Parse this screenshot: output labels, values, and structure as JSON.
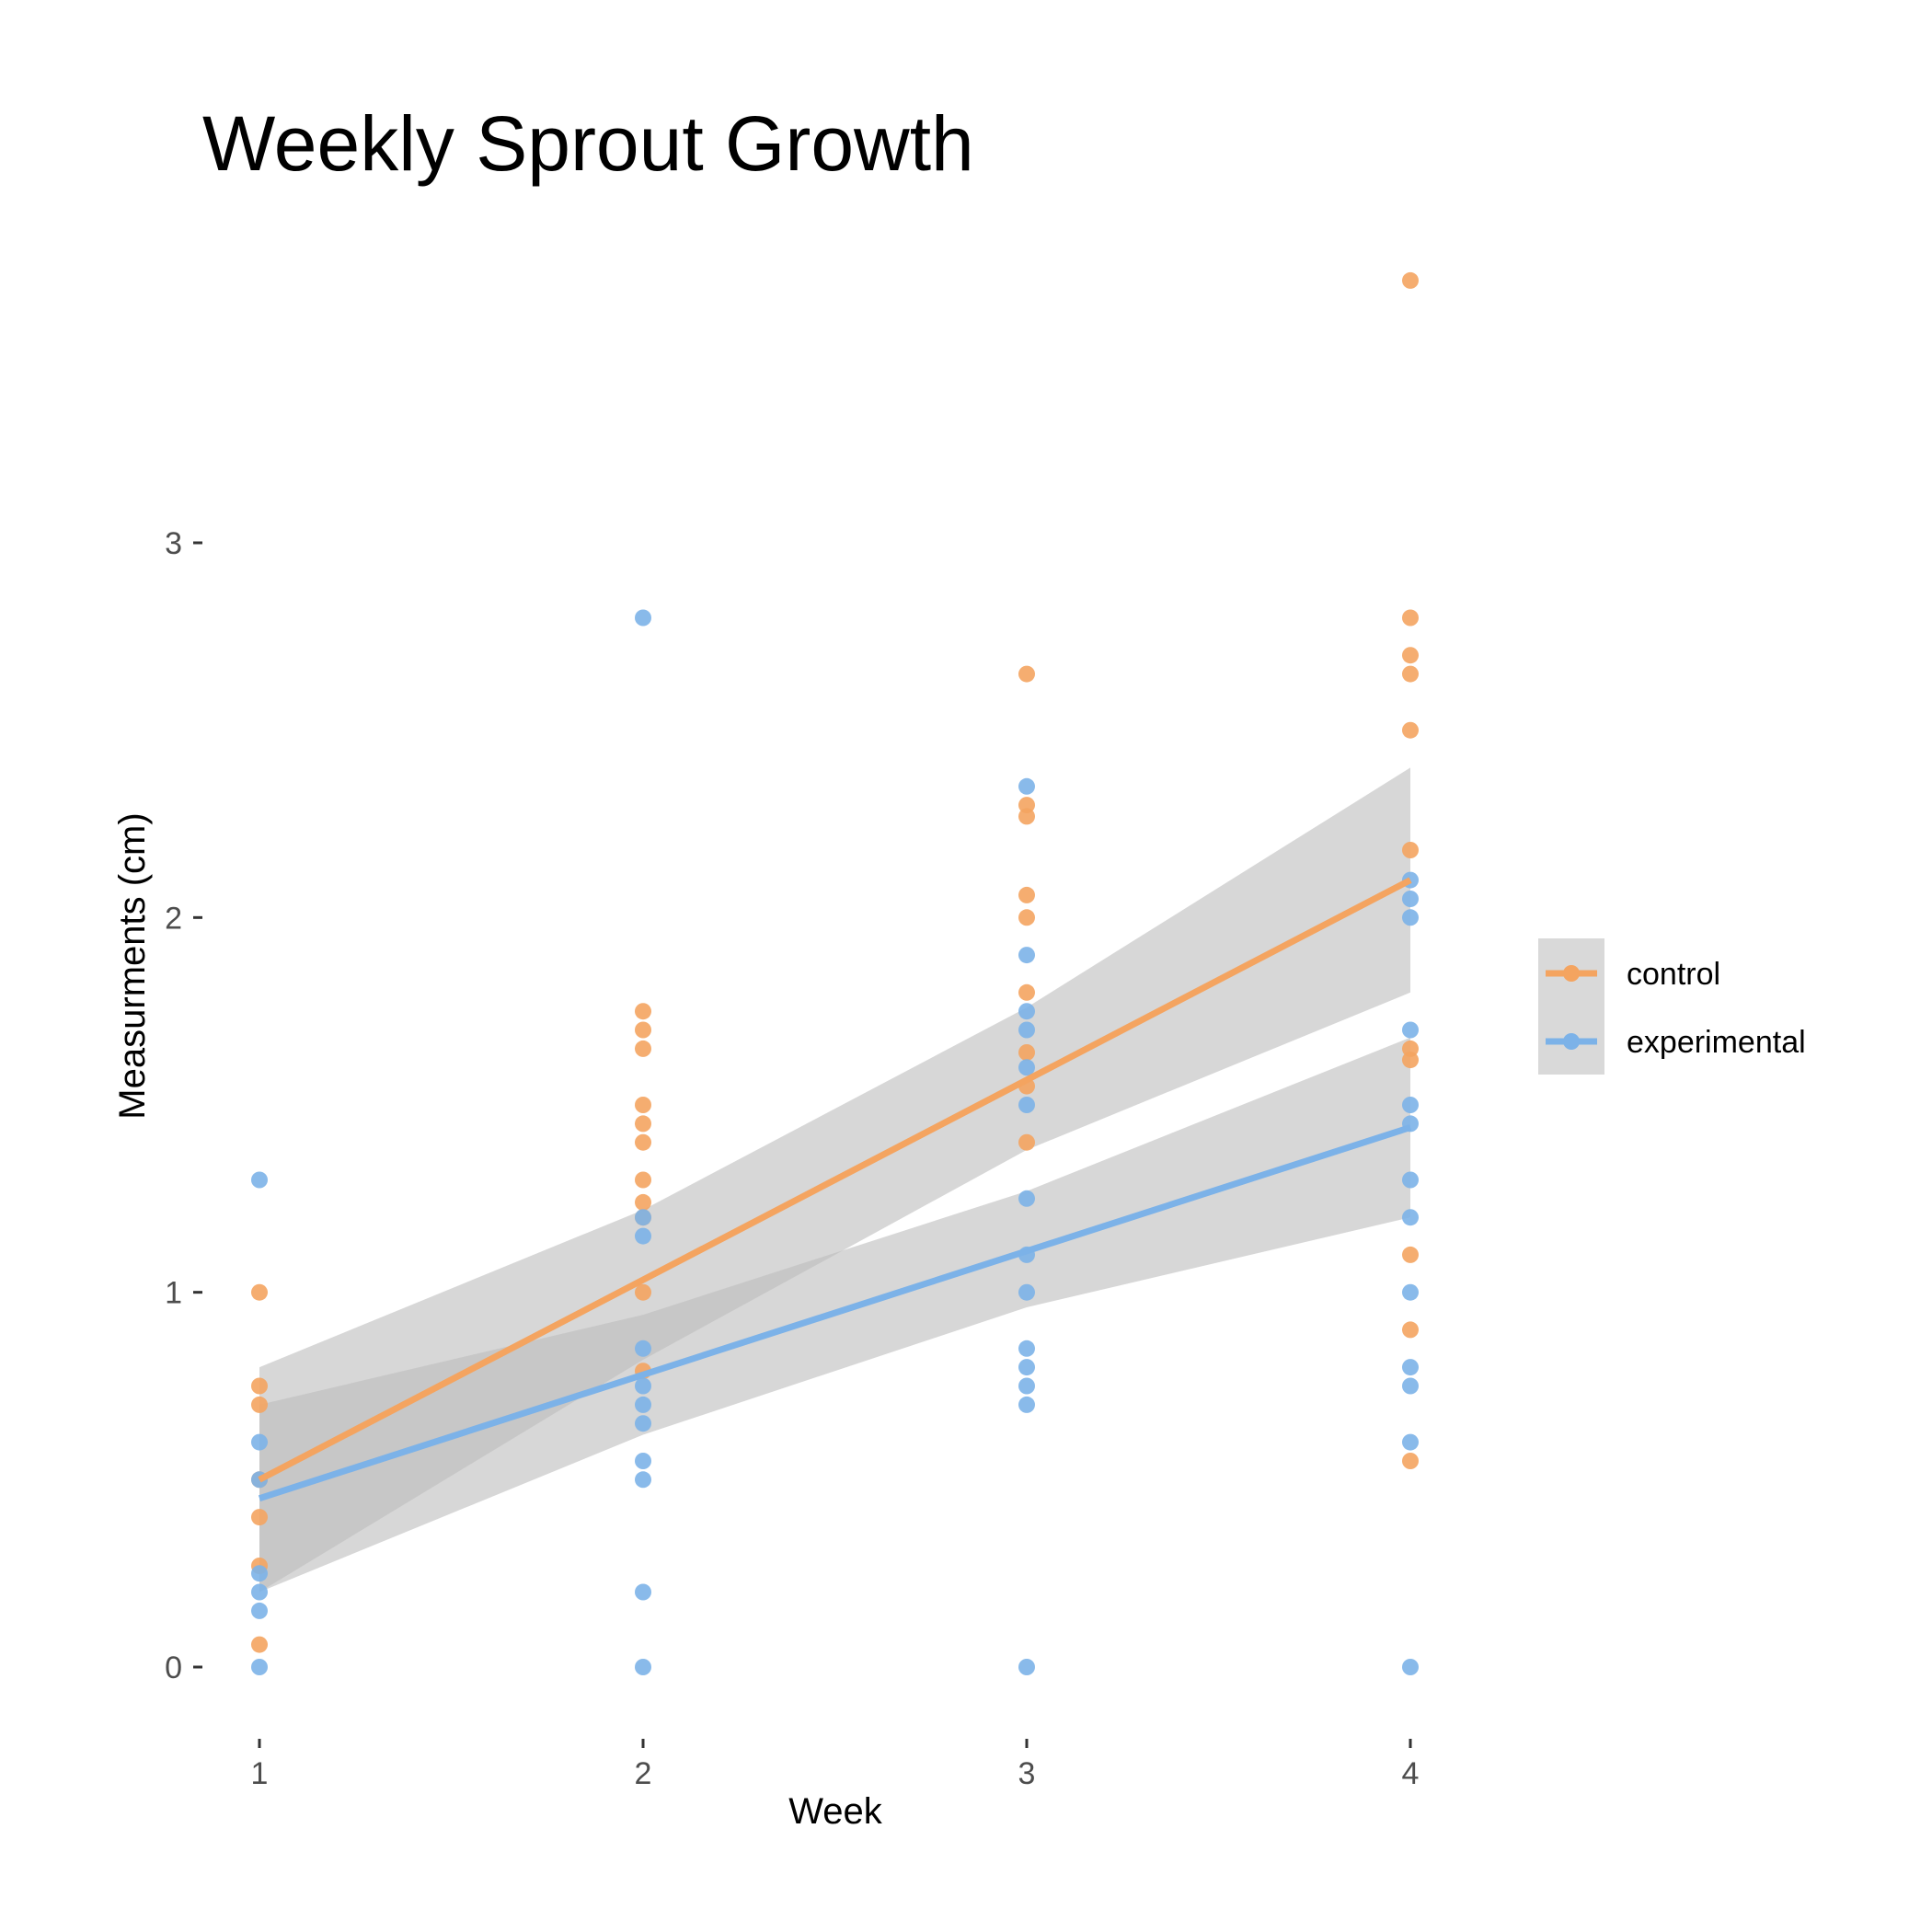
{
  "chart_data": {
    "type": "scatter",
    "title": "Weekly Sprout Growth",
    "xlabel": "Week",
    "ylabel": "Measurments (cm)",
    "xlim": [
      0.85,
      4.3
    ],
    "ylim": [
      -0.15,
      3.9
    ],
    "x_ticks": [
      1,
      2,
      3,
      4
    ],
    "y_ticks": [
      0,
      1,
      2,
      3
    ],
    "grid": false,
    "legend_position": "right",
    "band_color": "#bdbdbd",
    "series": [
      {
        "name": "control",
        "color": "#f4a460",
        "points": [
          [
            1,
            1.0
          ],
          [
            1,
            0.75
          ],
          [
            1,
            0.7
          ],
          [
            1,
            0.5
          ],
          [
            1,
            0.4
          ],
          [
            1,
            0.27
          ],
          [
            1,
            0.06
          ],
          [
            2,
            1.75
          ],
          [
            2,
            1.7
          ],
          [
            2,
            1.65
          ],
          [
            2,
            1.5
          ],
          [
            2,
            1.45
          ],
          [
            2,
            1.4
          ],
          [
            2,
            1.3
          ],
          [
            2,
            1.24
          ],
          [
            2,
            1.2
          ],
          [
            2,
            1.0
          ],
          [
            2,
            0.79
          ],
          [
            3,
            2.65
          ],
          [
            3,
            2.3
          ],
          [
            3,
            2.27
          ],
          [
            3,
            2.06
          ],
          [
            3,
            2.0
          ],
          [
            3,
            1.8
          ],
          [
            3,
            1.64
          ],
          [
            3,
            1.55
          ],
          [
            3,
            1.4
          ],
          [
            4,
            3.7
          ],
          [
            4,
            2.8
          ],
          [
            4,
            2.7
          ],
          [
            4,
            2.65
          ],
          [
            4,
            2.5
          ],
          [
            4,
            2.18
          ],
          [
            4,
            1.65
          ],
          [
            4,
            1.62
          ],
          [
            4,
            1.1
          ],
          [
            4,
            0.9
          ],
          [
            4,
            0.55
          ]
        ],
        "trend": [
          [
            1,
            0.5
          ],
          [
            4,
            2.1
          ]
        ],
        "band": {
          "x": [
            1,
            2,
            3,
            4
          ],
          "lower": [
            0.2,
            0.82,
            1.38,
            1.8
          ],
          "upper": [
            0.8,
            1.22,
            1.76,
            2.4
          ]
        }
      },
      {
        "name": "experimental",
        "color": "#7cb2e8",
        "points": [
          [
            1,
            1.3
          ],
          [
            1,
            0.6
          ],
          [
            1,
            0.5
          ],
          [
            1,
            0.25
          ],
          [
            1,
            0.2
          ],
          [
            1,
            0.15
          ],
          [
            1,
            0.0
          ],
          [
            2,
            2.8
          ],
          [
            2,
            1.2
          ],
          [
            2,
            1.15
          ],
          [
            2,
            0.85
          ],
          [
            2,
            0.75
          ],
          [
            2,
            0.7
          ],
          [
            2,
            0.65
          ],
          [
            2,
            0.55
          ],
          [
            2,
            0.5
          ],
          [
            2,
            0.2
          ],
          [
            2,
            0.0
          ],
          [
            3,
            2.35
          ],
          [
            3,
            1.9
          ],
          [
            3,
            1.75
          ],
          [
            3,
            1.7
          ],
          [
            3,
            1.6
          ],
          [
            3,
            1.5
          ],
          [
            3,
            1.25
          ],
          [
            3,
            1.1
          ],
          [
            3,
            1.0
          ],
          [
            3,
            0.85
          ],
          [
            3,
            0.8
          ],
          [
            3,
            0.75
          ],
          [
            3,
            0.7
          ],
          [
            3,
            0.0
          ],
          [
            4,
            2.1
          ],
          [
            4,
            2.05
          ],
          [
            4,
            2.0
          ],
          [
            4,
            1.7
          ],
          [
            4,
            1.5
          ],
          [
            4,
            1.45
          ],
          [
            4,
            1.3
          ],
          [
            4,
            1.2
          ],
          [
            4,
            1.0
          ],
          [
            4,
            0.8
          ],
          [
            4,
            0.75
          ],
          [
            4,
            0.6
          ],
          [
            4,
            0.0
          ]
        ],
        "trend": [
          [
            1,
            0.45
          ],
          [
            4,
            1.44
          ]
        ],
        "band": {
          "x": [
            1,
            2,
            3,
            4
          ],
          "lower": [
            0.2,
            0.62,
            0.96,
            1.2
          ],
          "upper": [
            0.7,
            0.94,
            1.27,
            1.68
          ]
        }
      }
    ]
  }
}
